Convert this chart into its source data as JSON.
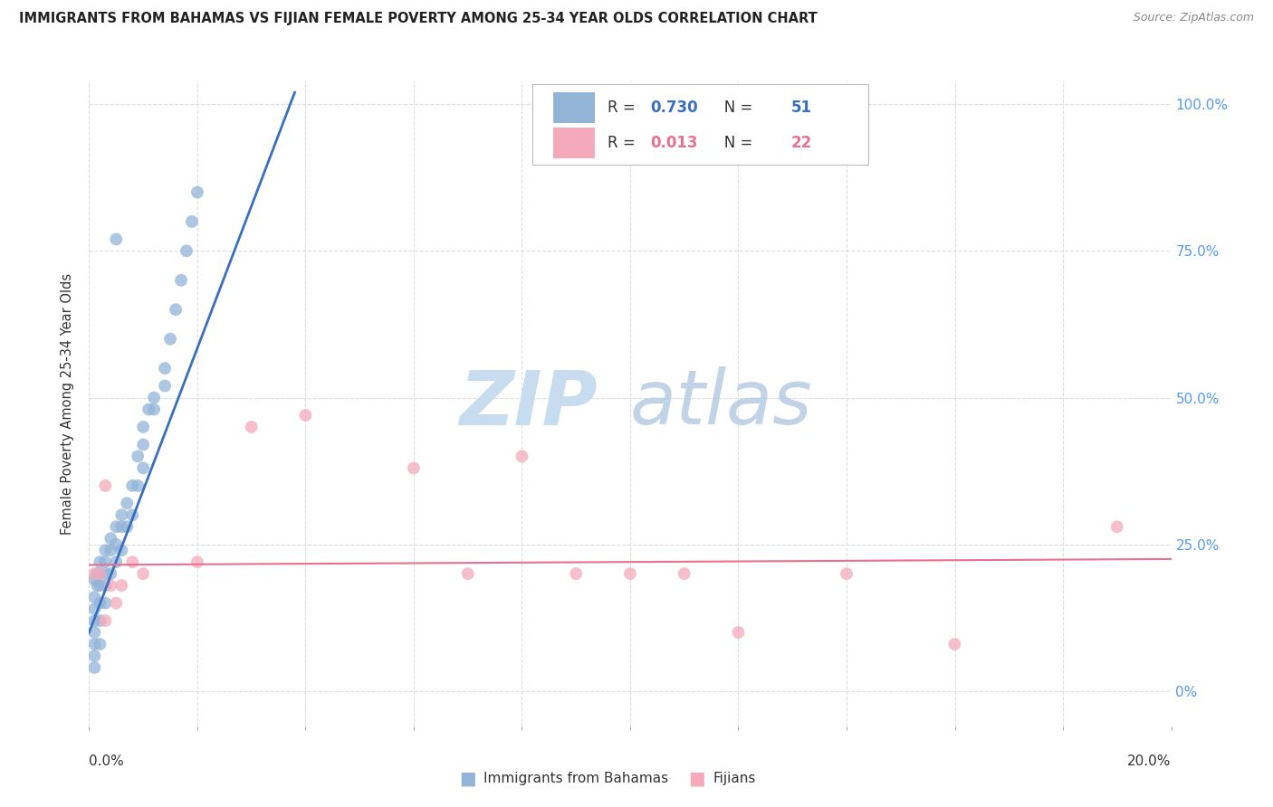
{
  "title": "IMMIGRANTS FROM BAHAMAS VS FIJIAN FEMALE POVERTY AMONG 25-34 YEAR OLDS CORRELATION CHART",
  "source": "Source: ZipAtlas.com",
  "ylabel": "Female Poverty Among 25-34 Year Olds",
  "ytick_values": [
    0.0,
    0.25,
    0.5,
    0.75,
    1.0
  ],
  "ytick_labels_right": [
    "0%",
    "25.0%",
    "50.0%",
    "75.0%",
    "100.0%"
  ],
  "xtick_values": [
    0.0,
    0.02,
    0.04,
    0.06,
    0.08,
    0.1,
    0.12,
    0.14,
    0.16,
    0.18,
    0.2
  ],
  "xlim": [
    0.0,
    0.2
  ],
  "ylim": [
    -0.06,
    1.04
  ],
  "legend_blue_r": "0.730",
  "legend_blue_n": "51",
  "legend_pink_r": "0.013",
  "legend_pink_n": "22",
  "legend_bottom_blue": "Immigrants from Bahamas",
  "legend_bottom_pink": "Fijians",
  "blue_color": "#92B4D7",
  "pink_color": "#F4AABB",
  "blue_line_color": "#3A6FBF",
  "pink_line_color": "#E87090",
  "watermark_zip": "ZIP",
  "watermark_atlas": "atlas",
  "blue_x": [
    0.001,
    0.001,
    0.001,
    0.001,
    0.001,
    0.001,
    0.001,
    0.001,
    0.0015,
    0.0015,
    0.002,
    0.002,
    0.002,
    0.002,
    0.002,
    0.002,
    0.003,
    0.003,
    0.003,
    0.003,
    0.003,
    0.004,
    0.004,
    0.004,
    0.005,
    0.005,
    0.005,
    0.006,
    0.006,
    0.006,
    0.007,
    0.007,
    0.008,
    0.008,
    0.009,
    0.009,
    0.01,
    0.01,
    0.01,
    0.011,
    0.012,
    0.012,
    0.014,
    0.014,
    0.015,
    0.016,
    0.017,
    0.018,
    0.019,
    0.02,
    0.005
  ],
  "blue_y": [
    0.19,
    0.16,
    0.14,
    0.12,
    0.1,
    0.08,
    0.06,
    0.04,
    0.2,
    0.18,
    0.22,
    0.2,
    0.18,
    0.15,
    0.12,
    0.08,
    0.24,
    0.22,
    0.2,
    0.18,
    0.15,
    0.26,
    0.24,
    0.2,
    0.28,
    0.25,
    0.22,
    0.3,
    0.28,
    0.24,
    0.32,
    0.28,
    0.35,
    0.3,
    0.4,
    0.35,
    0.45,
    0.42,
    0.38,
    0.48,
    0.5,
    0.48,
    0.55,
    0.52,
    0.6,
    0.65,
    0.7,
    0.75,
    0.8,
    0.85,
    0.77
  ],
  "pink_x": [
    0.001,
    0.002,
    0.003,
    0.004,
    0.005,
    0.006,
    0.008,
    0.01,
    0.02,
    0.03,
    0.04,
    0.06,
    0.07,
    0.08,
    0.09,
    0.1,
    0.11,
    0.12,
    0.14,
    0.16,
    0.19,
    0.003
  ],
  "pink_y": [
    0.2,
    0.2,
    0.35,
    0.18,
    0.15,
    0.18,
    0.22,
    0.2,
    0.22,
    0.45,
    0.47,
    0.38,
    0.2,
    0.4,
    0.2,
    0.2,
    0.2,
    0.1,
    0.2,
    0.08,
    0.28,
    0.12
  ],
  "blue_trend_x0": 0.0,
  "blue_trend_y0": 0.1,
  "blue_trend_x1": 0.038,
  "blue_trend_y1": 1.02,
  "pink_trend_x0": 0.0,
  "pink_trend_y0": 0.215,
  "pink_trend_x1": 0.2,
  "pink_trend_y1": 0.225
}
